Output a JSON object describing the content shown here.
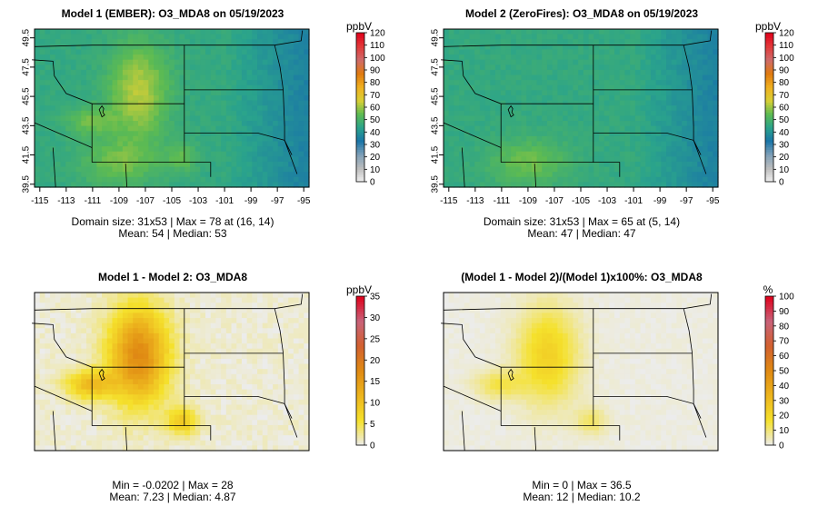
{
  "x_ticks": [
    "-115",
    "-113",
    "-111",
    "-109",
    "-107",
    "-105",
    "-103",
    "-101",
    "-99",
    "-97",
    "-95"
  ],
  "y_ticks": [
    "39.5",
    "41.5",
    "43.5",
    "45.5",
    "47.5",
    "49.5"
  ],
  "panels": [
    {
      "title": "Model 1 (EMBER): O3_MDA8 on 05/19/2023",
      "stats_line1": "Domain size: 31x53 | Max = 78 at (16, 14)",
      "stats_line2": "Mean: 54 |  Median: 53",
      "unit": "ppbV",
      "scale_ticks": [
        "0",
        "10",
        "20",
        "30",
        "40",
        "50",
        "60",
        "70",
        "80",
        "90",
        "100",
        "110",
        "120"
      ],
      "scale_max": 120,
      "palette": "ozone",
      "show_axes": true,
      "field": "ember"
    },
    {
      "title": "Model 2 (ZeroFires): O3_MDA8 on 05/19/2023",
      "stats_line1": "Domain size: 31x53 | Max = 65 at (5, 14)",
      "stats_line2": "Mean: 47 |  Median: 47",
      "unit": "ppbV",
      "scale_ticks": [
        "0",
        "10",
        "20",
        "30",
        "40",
        "50",
        "60",
        "70",
        "80",
        "90",
        "100",
        "110",
        "120"
      ],
      "scale_max": 120,
      "palette": "ozone",
      "show_axes": true,
      "field": "zerofires"
    },
    {
      "title": "Model 1 - Model 2: O3_MDA8",
      "stats_line1": "Min = -0.0202 | Max = 28",
      "stats_line2": "Mean: 7.23 |  Median: 4.87",
      "unit": "ppbV",
      "scale_ticks": [
        "0",
        "5",
        "10",
        "15",
        "20",
        "25",
        "30",
        "35"
      ],
      "scale_max": 35,
      "palette": "diff",
      "show_axes": false,
      "field": "diff"
    },
    {
      "title": "(Model 1 - Model 2)/(Model 1)x100%: O3_MDA8",
      "stats_line1": "Min = 0 | Max = 36.5",
      "stats_line2": "Mean: 12 |  Median: 10.2",
      "unit": "%",
      "scale_ticks": [
        "0",
        "10",
        "20",
        "30",
        "40",
        "50",
        "60",
        "70",
        "80",
        "90",
        "100"
      ],
      "scale_max": 100,
      "palette": "diff",
      "show_axes": false,
      "field": "pct"
    }
  ],
  "colors": {
    "ozone_stops": [
      "#f2f2f2",
      "#bdbdbd",
      "#7fa0b8",
      "#1a75a8",
      "#2aa38c",
      "#5dbb52",
      "#d9cf35",
      "#f0b020",
      "#e07a10",
      "#cf6b6b",
      "#e23a3a",
      "#e0001b"
    ],
    "diff_stops": [
      "#ececec",
      "#f5e12c",
      "#edb51e",
      "#e08a13",
      "#d2612f",
      "#c8627a",
      "#e0001b"
    ]
  }
}
